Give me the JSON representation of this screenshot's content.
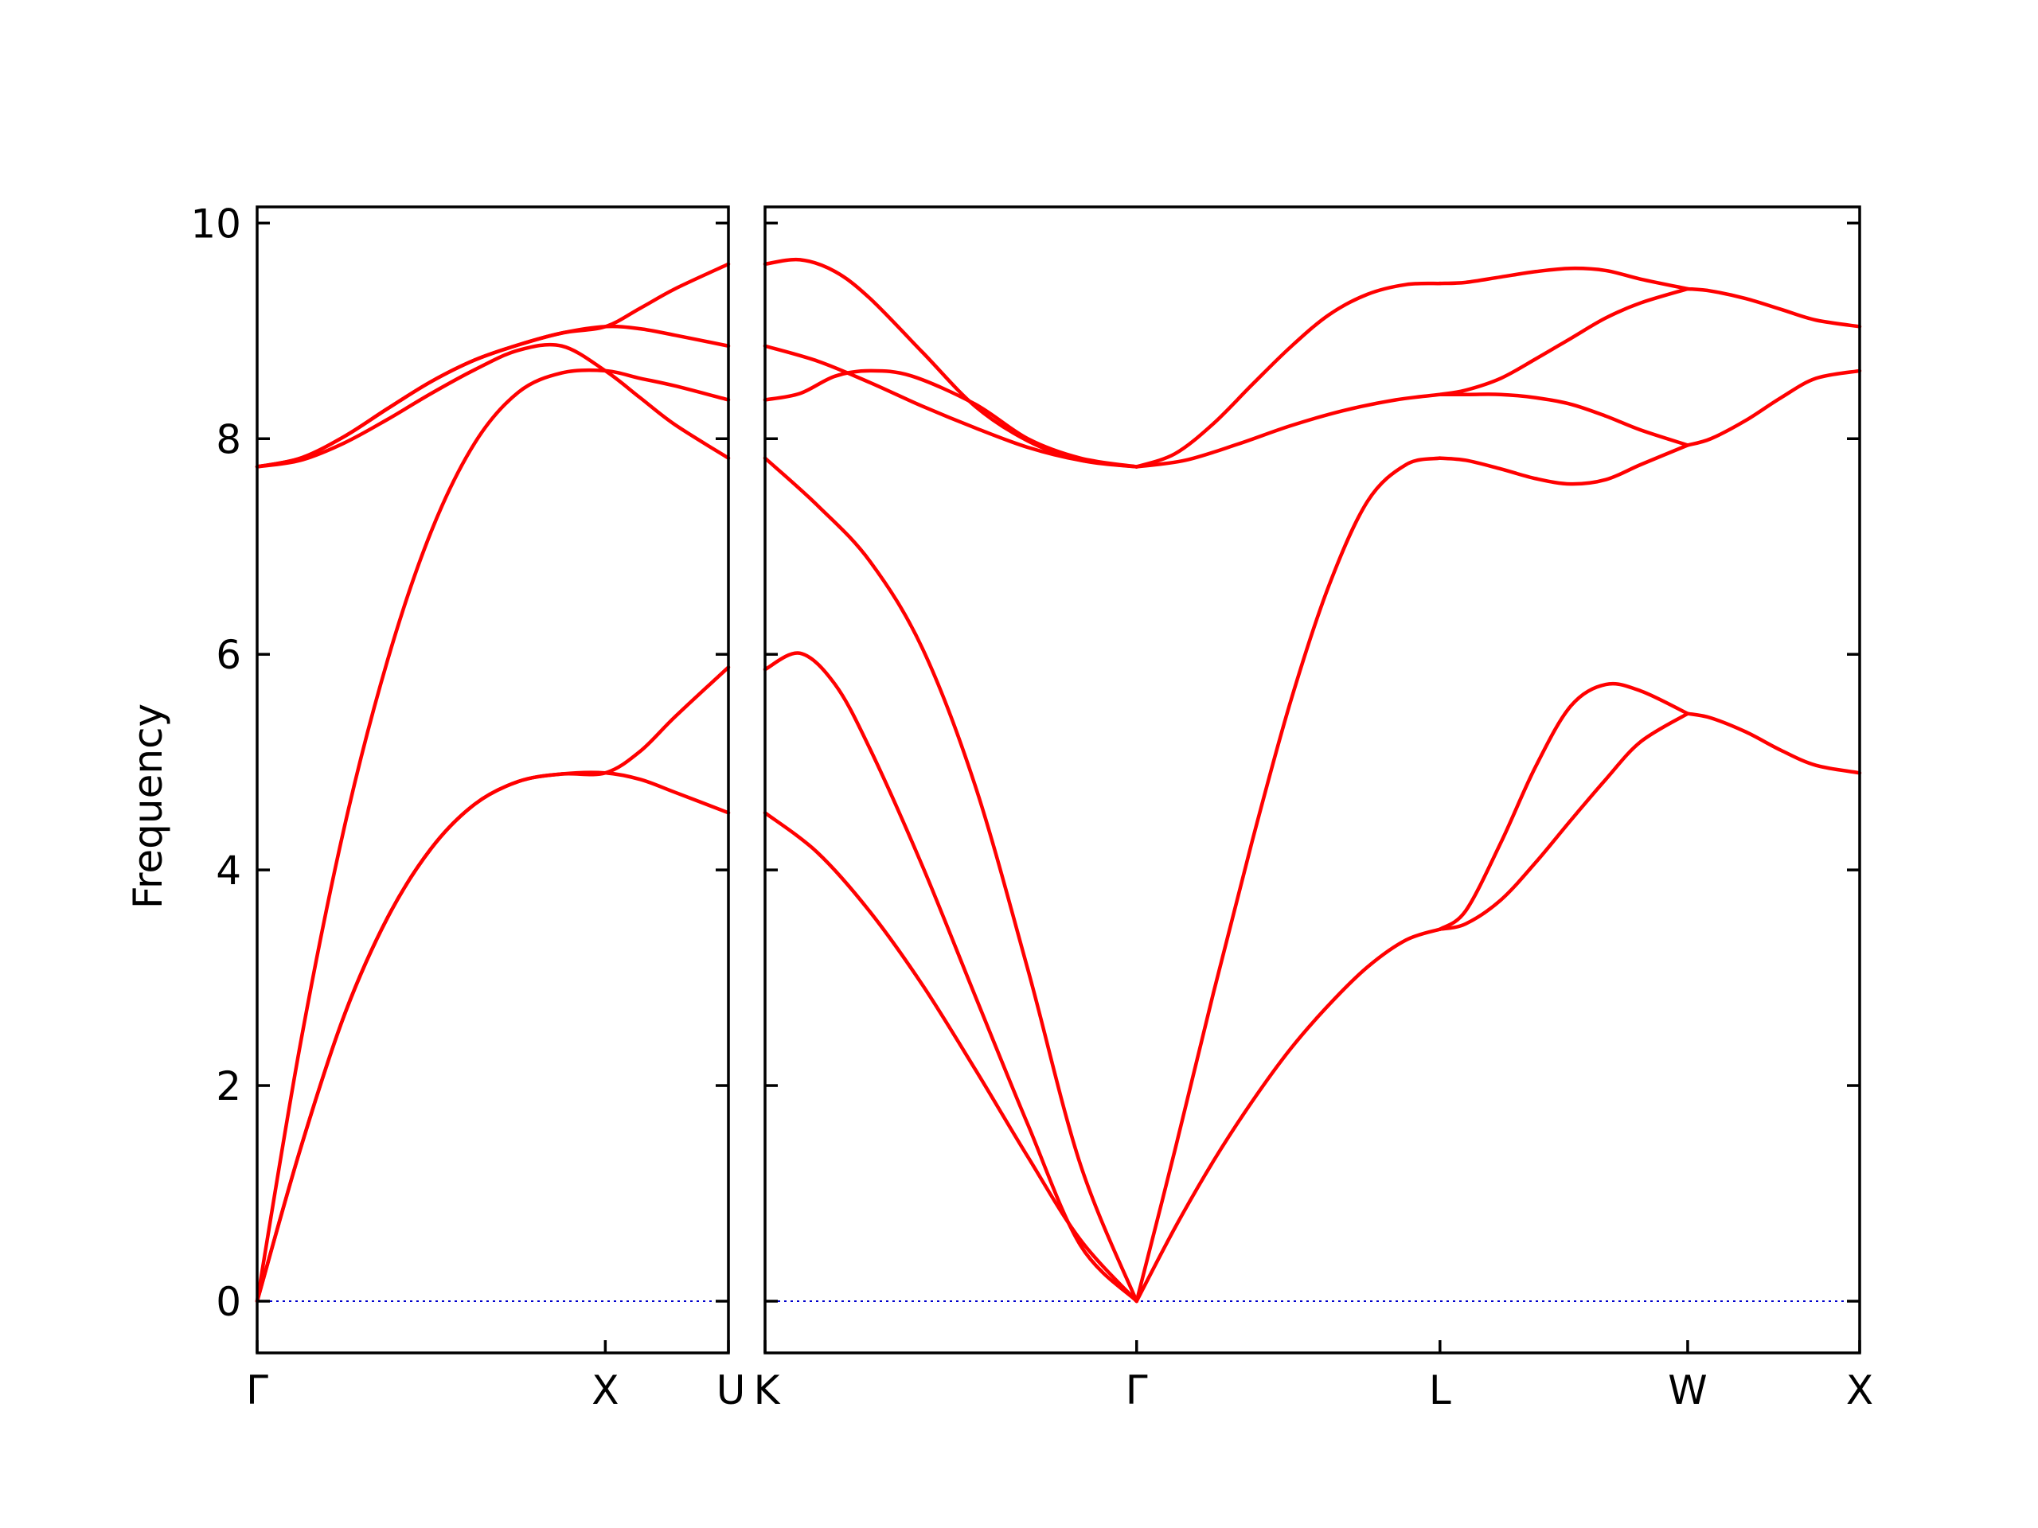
{
  "chart_data": {
    "type": "line",
    "title": "",
    "ylabel": "Frequency",
    "xlabel": "",
    "ylim": [
      -0.48,
      10.15
    ],
    "yticks": [
      0,
      2,
      4,
      6,
      8,
      10
    ],
    "grid": false,
    "legend": "none",
    "colors": {
      "bands": "#ff0000",
      "zero_line": "#0000cc",
      "axes": "#000000"
    },
    "panels": [
      {
        "name": "Γ-X-U",
        "xlim": [
          0,
          1.3536
        ],
        "ticks": [
          {
            "x": 0,
            "label": "Γ"
          },
          {
            "x": 1.0,
            "label": "X"
          },
          {
            "x": 1.3536,
            "label": "U"
          }
        ],
        "bands": [
          {
            "x": [
              0,
              0.125,
              0.25,
              0.375,
              0.5,
              0.625,
              0.75,
              0.875,
              1.0,
              1.1,
              1.2,
              1.3536
            ],
            "y": [
              0,
              1.42,
              2.65,
              3.56,
              4.2,
              4.61,
              4.82,
              4.89,
              4.9,
              4.84,
              4.72,
              4.53
            ]
          },
          {
            "x": [
              0,
              0.125,
              0.25,
              0.375,
              0.5,
              0.625,
              0.75,
              0.875,
              1.0,
              1.1,
              1.2,
              1.3536
            ],
            "y": [
              0,
              2.4,
              4.39,
              5.95,
              7.14,
              7.96,
              8.43,
              8.61,
              8.63,
              8.56,
              8.49,
              8.36
            ]
          },
          {
            "x": [
              0,
              0.125,
              0.25,
              0.375,
              0.5,
              0.625,
              0.75,
              0.875,
              1.0,
              1.1,
              1.2,
              1.3536
            ],
            "y": [
              7.74,
              7.82,
              8.02,
              8.28,
              8.53,
              8.73,
              8.87,
              8.98,
              9.04,
              9.02,
              8.96,
              8.86
            ]
          },
          {
            "x": [
              0,
              0.125,
              0.25,
              0.375,
              0.5,
              0.625,
              0.75,
              0.875,
              1.0,
              1.1,
              1.2,
              1.3536
            ],
            "y": [
              7.74,
              7.8,
              7.96,
              8.18,
              8.42,
              8.64,
              8.82,
              8.86,
              8.63,
              8.38,
              8.13,
              7.82
            ]
          },
          {
            "x": [
              0,
              0.125,
              0.25,
              0.375,
              0.5,
              0.625,
              0.75,
              0.875,
              1.0,
              1.1,
              1.2,
              1.3536
            ],
            "y": [
              7.74,
              7.82,
              8.02,
              8.28,
              8.53,
              8.73,
              8.87,
              8.98,
              9.04,
              9.21,
              9.39,
              9.62
            ]
          },
          {
            "x": [
              0,
              0.125,
              0.25,
              0.375,
              0.5,
              0.625,
              0.75,
              0.875,
              1.0,
              1.1,
              1.2,
              1.3536
            ],
            "y": [
              0,
              1.42,
              2.65,
              3.56,
              4.2,
              4.61,
              4.82,
              4.89,
              4.9,
              5.1,
              5.42,
              5.88
            ]
          }
        ]
      },
      {
        "name": "K-Γ-L-W-X",
        "xlim": [
          0,
          3.1248
        ],
        "ticks": [
          {
            "x": 0,
            "label": "K"
          },
          {
            "x": 1.0607,
            "label": "Γ"
          },
          {
            "x": 1.9267,
            "label": "L"
          },
          {
            "x": 2.6338,
            "label": "W"
          },
          {
            "x": 3.1248,
            "label": "X"
          }
        ],
        "bands": [
          {
            "x": [
              0,
              0.15,
              0.3,
              0.45,
              0.6,
              0.75,
              0.9,
              1.0607
            ],
            "y": [
              4.53,
              4.16,
              3.61,
              2.93,
              2.15,
              1.34,
              0.57,
              0
            ]
          },
          {
            "x": [
              0,
              0.1,
              0.2,
              0.3,
              0.45,
              0.6,
              0.75,
              0.9,
              1.0607
            ],
            "y": [
              5.86,
              6.01,
              5.72,
              5.12,
              4.03,
              2.83,
              1.64,
              0.52,
              0
            ]
          },
          {
            "x": [
              0,
              0.15,
              0.3,
              0.45,
              0.6,
              0.75,
              0.9,
              1.0607
            ],
            "y": [
              7.82,
              7.38,
              6.86,
              6.05,
              4.78,
              3.08,
              1.27,
              0
            ]
          },
          {
            "x": [
              0,
              0.15,
              0.3,
              0.45,
              0.6,
              0.75,
              0.9,
              1.0607
            ],
            "y": [
              8.86,
              8.72,
              8.52,
              8.3,
              8.1,
              7.92,
              7.8,
              7.74
            ]
          },
          {
            "x": [
              0,
              0.1,
              0.2,
              0.3,
              0.42,
              0.6,
              0.75,
              0.9,
              1.0607
            ],
            "y": [
              8.36,
              8.42,
              8.58,
              8.63,
              8.58,
              8.32,
              8.0,
              7.82,
              7.74
            ]
          },
          {
            "x": [
              0,
              0.1,
              0.2,
              0.3,
              0.45,
              0.6,
              0.75,
              0.9,
              1.0607
            ],
            "y": [
              9.62,
              9.66,
              9.55,
              9.3,
              8.8,
              8.3,
              7.98,
              7.8,
              7.74
            ]
          },
          {
            "x": [
              1.0607,
              1.17,
              1.28,
              1.39,
              1.5,
              1.61,
              1.72,
              1.83,
              1.9267
            ],
            "y": [
              0,
              0.68,
              1.3,
              1.85,
              2.34,
              2.75,
              3.1,
              3.35,
              3.45
            ]
          },
          {
            "x": [
              1.0607,
              1.17,
              1.28,
              1.39,
              1.5,
              1.61,
              1.72,
              1.83,
              1.9267
            ],
            "y": [
              0,
              1.4,
              2.86,
              4.26,
              5.56,
              6.64,
              7.42,
              7.76,
              7.82
            ]
          },
          {
            "x": [
              1.0607,
              1.2,
              1.35,
              1.5,
              1.65,
              1.8,
              1.9267
            ],
            "y": [
              7.74,
              7.8,
              7.95,
              8.12,
              8.26,
              8.36,
              8.41
            ]
          },
          {
            "x": [
              1.0607,
              1.17,
              1.28,
              1.39,
              1.5,
              1.61,
              1.72,
              1.83,
              1.9267
            ],
            "y": [
              7.74,
              7.86,
              8.14,
              8.5,
              8.85,
              9.15,
              9.34,
              9.43,
              9.44
            ]
          },
          {
            "x": [
              1.9267,
              2.0,
              2.1,
              2.2,
              2.3,
              2.4,
              2.5,
              2.6338
            ],
            "y": [
              3.45,
              3.5,
              3.72,
              4.07,
              4.46,
              4.84,
              5.19,
              5.45
            ]
          },
          {
            "x": [
              1.9267,
              2.0,
              2.1,
              2.2,
              2.3,
              2.4,
              2.5,
              2.6338
            ],
            "y": [
              3.45,
              3.62,
              4.25,
              4.96,
              5.52,
              5.72,
              5.66,
              5.45
            ]
          },
          {
            "x": [
              1.9267,
              2.0,
              2.1,
              2.2,
              2.3,
              2.4,
              2.5,
              2.6338
            ],
            "y": [
              7.82,
              7.8,
              7.72,
              7.63,
              7.58,
              7.62,
              7.76,
              7.94
            ]
          },
          {
            "x": [
              1.9267,
              2.0,
              2.1,
              2.2,
              2.3,
              2.4,
              2.5,
              2.6338
            ],
            "y": [
              8.41,
              8.41,
              8.41,
              8.38,
              8.32,
              8.21,
              8.08,
              7.94
            ]
          },
          {
            "x": [
              1.9267,
              2.0,
              2.1,
              2.2,
              2.3,
              2.4,
              2.5,
              2.6338
            ],
            "y": [
              8.41,
              8.45,
              8.56,
              8.74,
              8.93,
              9.12,
              9.26,
              9.39
            ]
          },
          {
            "x": [
              1.9267,
              2.0,
              2.1,
              2.2,
              2.3,
              2.4,
              2.5,
              2.6338
            ],
            "y": [
              9.44,
              9.45,
              9.5,
              9.55,
              9.58,
              9.56,
              9.48,
              9.39
            ]
          },
          {
            "x": [
              2.6338,
              2.7,
              2.8,
              2.9,
              3.0,
              3.1248
            ],
            "y": [
              5.45,
              5.41,
              5.28,
              5.11,
              4.97,
              4.9
            ]
          },
          {
            "x": [
              2.6338,
              2.7,
              2.8,
              2.9,
              3.0,
              3.1248
            ],
            "y": [
              7.94,
              8.0,
              8.17,
              8.38,
              8.56,
              8.63
            ]
          },
          {
            "x": [
              2.6338,
              2.7,
              2.8,
              2.9,
              3.0,
              3.1248
            ],
            "y": [
              9.39,
              9.37,
              9.3,
              9.2,
              9.1,
              9.04
            ]
          }
        ]
      }
    ]
  }
}
